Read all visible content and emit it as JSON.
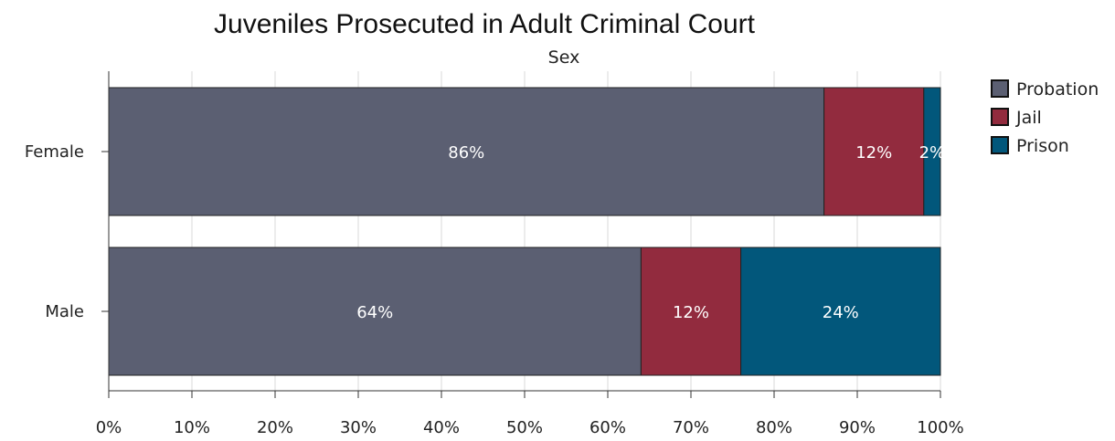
{
  "chart_data": {
    "type": "bar",
    "orientation": "horizontal",
    "stacked": true,
    "title": "Juveniles Prosecuted in Adult Criminal Court",
    "subtitle": "Sex",
    "categories": [
      "Female",
      "Male"
    ],
    "series": [
      {
        "name": "Probation",
        "color": "#5b5f72",
        "values": [
          86,
          64
        ],
        "labels": [
          "86%",
          "64%"
        ]
      },
      {
        "name": "Jail",
        "color": "#922b3e",
        "values": [
          12,
          12
        ],
        "labels": [
          "12%",
          "12%"
        ]
      },
      {
        "name": "Prison",
        "color": "#02577b",
        "values": [
          2,
          24
        ],
        "labels": [
          "2%",
          "24%"
        ]
      }
    ],
    "xlim": [
      0,
      100
    ],
    "xticks": [
      "0%",
      "10%",
      "20%",
      "30%",
      "40%",
      "50%",
      "60%",
      "70%",
      "80%",
      "90%",
      "100%"
    ],
    "grid": true,
    "legend_position": "top-right"
  }
}
